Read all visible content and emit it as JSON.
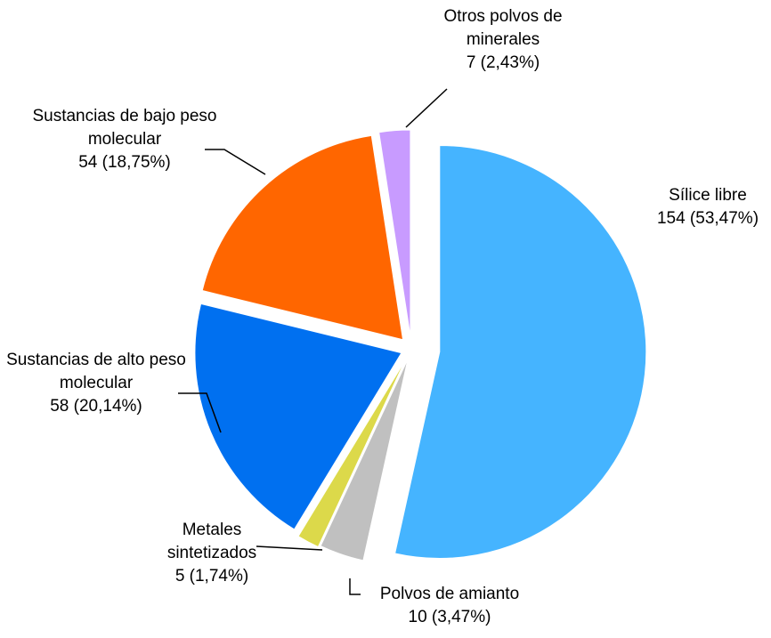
{
  "chart_data": {
    "type": "pie",
    "categories": [
      "Sílice libre",
      "Polvos de amianto",
      "Metales sintetizados",
      "Sustancias de alto peso molecular",
      "Sustancias de bajo peso molecular",
      "Otros polvos de minerales"
    ],
    "values": [
      154,
      10,
      5,
      58,
      54,
      7
    ],
    "value_labels": [
      "154 (53,47%)",
      "10 (3,47%)",
      "5 (1,74%)",
      "58 (20,14%)",
      "54 (18,75%)",
      "7 (2,43%)"
    ],
    "colors": [
      "#45b4ff",
      "#c0c0c0",
      "#dcd94a",
      "#0070f0",
      "#ff6600",
      "#c89bff"
    ]
  }
}
